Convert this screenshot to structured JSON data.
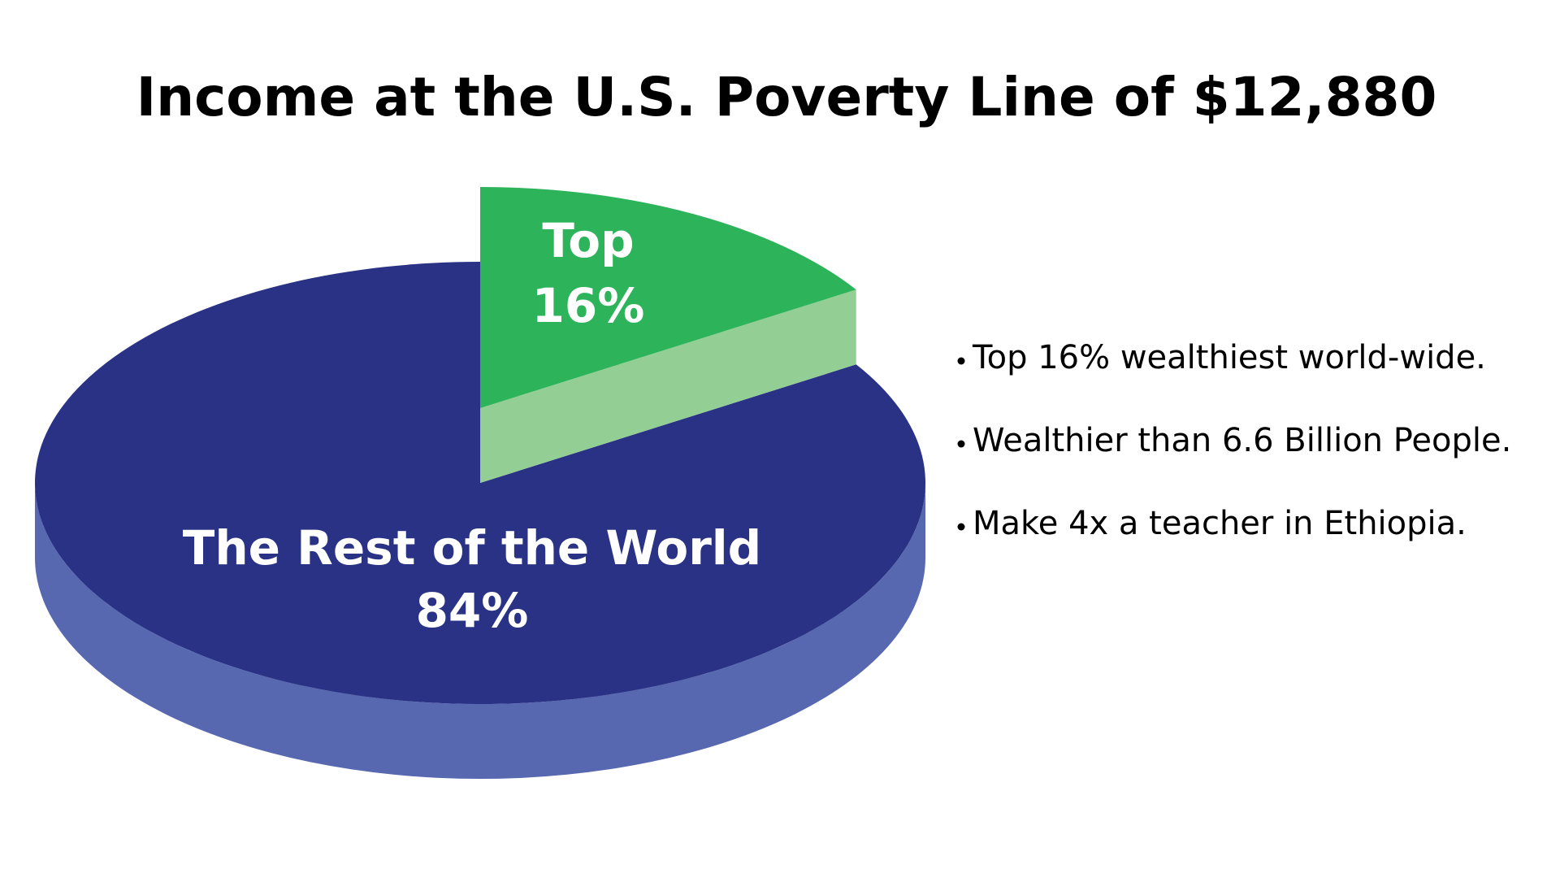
{
  "chart_data": {
    "type": "pie",
    "title": "Income at the U.S. Poverty Line of  $12,880",
    "categories": [
      "Top",
      "The Rest of the World"
    ],
    "values": [
      16,
      84
    ],
    "value_labels": [
      "16%",
      "84%"
    ],
    "colors": [
      "#2db35a",
      "#2a3286"
    ],
    "side_colors": [
      "#93cf95",
      "#5868b0"
    ],
    "explode": [
      true,
      false
    ],
    "annotations": [
      "Top 16% wealthiest world-wide.",
      "Wealthier than 6.6 Billion People.",
      "Make 4x a teacher in Ethiopia."
    ]
  }
}
